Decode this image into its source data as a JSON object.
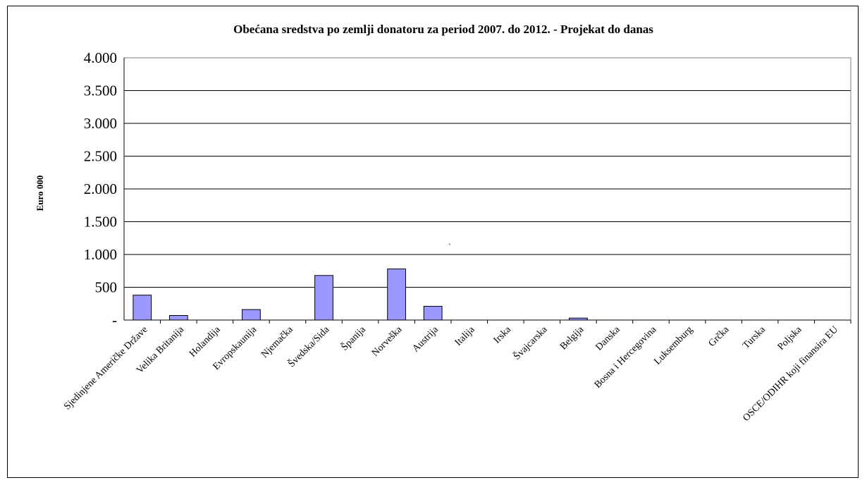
{
  "chart_data": {
    "type": "bar",
    "title": "Obećana sredstva po zemlji donatoru za period 2007. do 2012. - Projekat do danas",
    "xlabel": "",
    "ylabel": "Euro 000",
    "ylim": [
      0,
      4000
    ],
    "ytick_values": [
      0,
      500,
      1000,
      1500,
      2000,
      2500,
      3000,
      3500,
      4000
    ],
    "ytick_labels": [
      "-",
      "500",
      "1.000",
      "1.500",
      "2.000",
      "2.500",
      "3.000",
      "3.500",
      "4.000"
    ],
    "grid": true,
    "legend": "none",
    "categories": [
      "Sjedinjene Američke Države",
      "Velika Britanija",
      "Holandija",
      "Evropskaunija",
      "Njemačka",
      "Švedska/Sida",
      "Španija",
      "Norveška",
      "Austrija",
      "Italija",
      "Irska",
      "Švajcarska",
      "Belgija",
      "Danska",
      "Bosna i Hercegovina",
      "Luksemburg",
      "Grčka",
      "Turska",
      "Poljska",
      "OSCE/ODIHR koji finansira EU"
    ],
    "values": [
      380,
      70,
      0,
      160,
      0,
      680,
      0,
      780,
      210,
      0,
      0,
      0,
      30,
      0,
      0,
      0,
      0,
      0,
      0,
      0
    ],
    "bar_color": "#9999FF",
    "annotation": "`"
  }
}
